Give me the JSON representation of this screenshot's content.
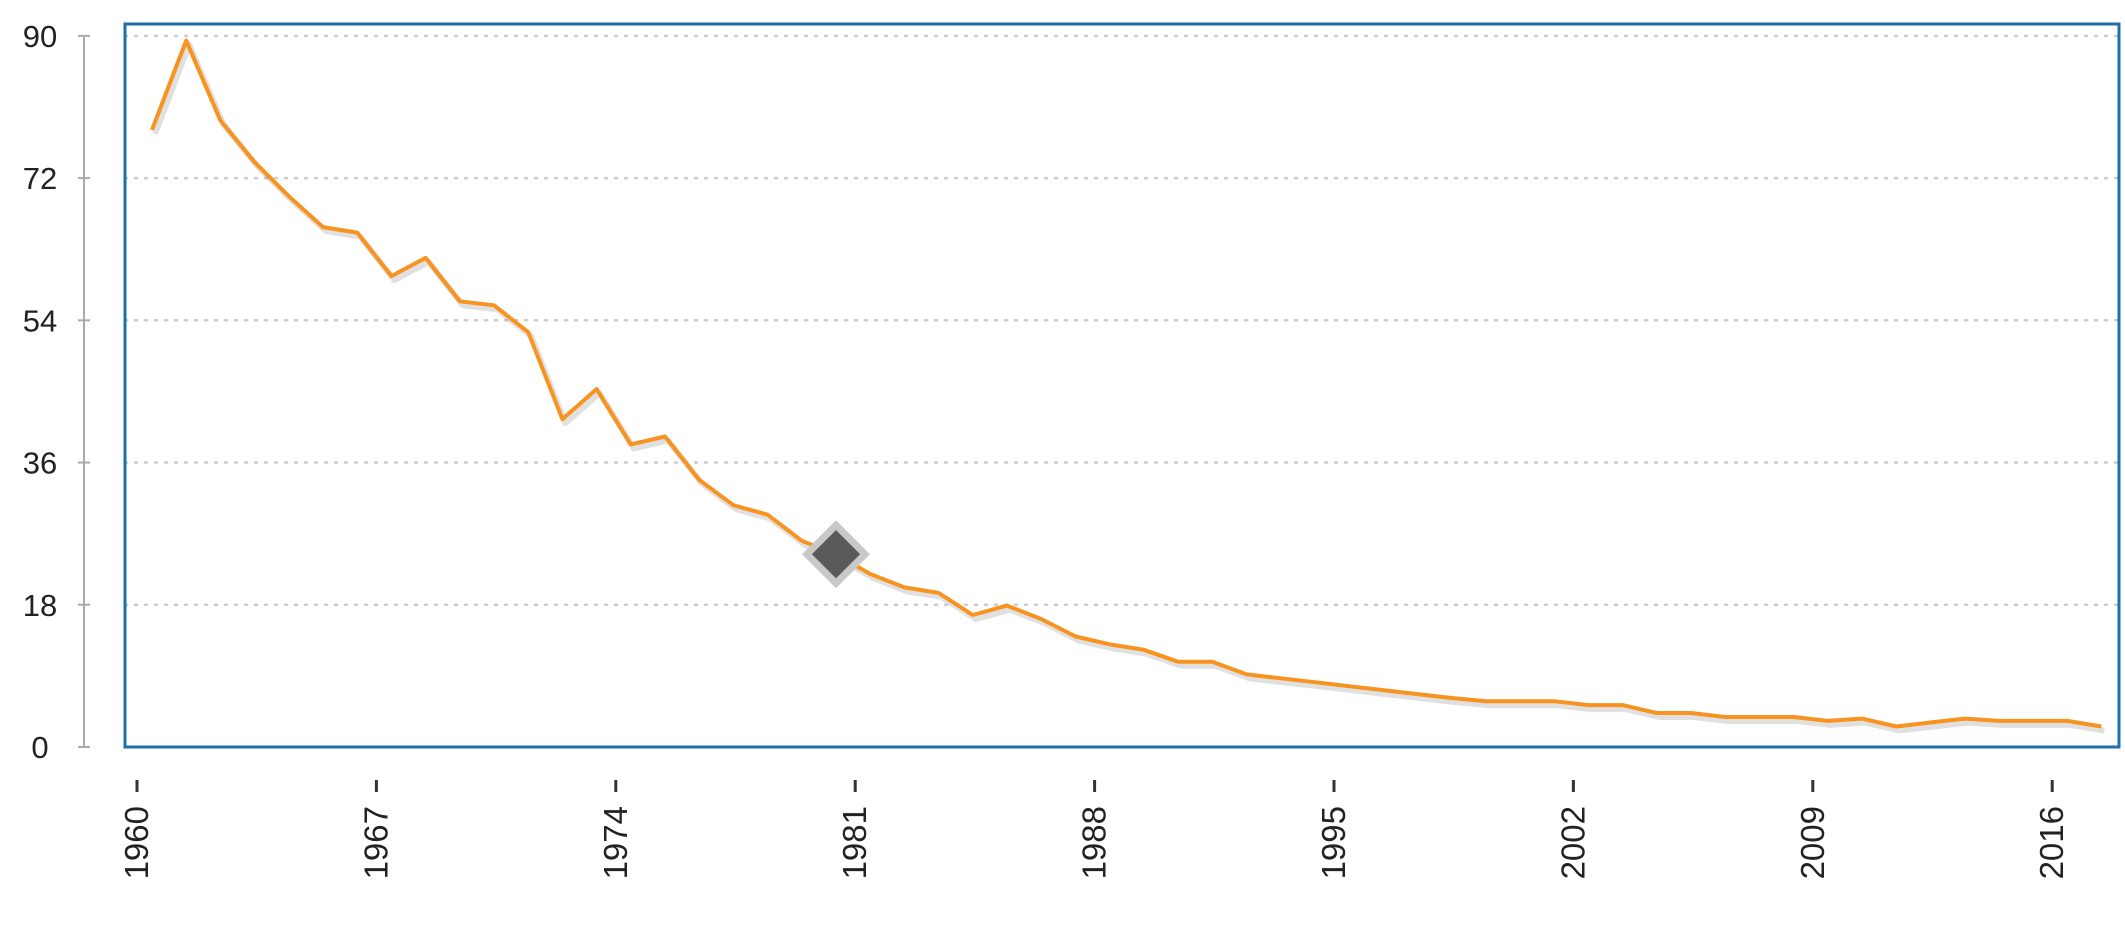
{
  "chart_data": {
    "type": "line",
    "categories": [
      "1960",
      null,
      null,
      null,
      null,
      null,
      null,
      "1967",
      null,
      null,
      null,
      null,
      null,
      null,
      "1974",
      null,
      null,
      null,
      null,
      null,
      null,
      "1981",
      null,
      null,
      null,
      null,
      null,
      null,
      "1988",
      null,
      null,
      null,
      null,
      null,
      null,
      "1995",
      null,
      null,
      null,
      null,
      null,
      null,
      "2002",
      null,
      null,
      null,
      null,
      null,
      null,
      "2009",
      null,
      null,
      null,
      null,
      null,
      null,
      "2016",
      null
    ],
    "series": [
      {
        "color": "#f7931e",
        "values": [
          78.1,
          89.4,
          79.3,
          74,
          69.7,
          65.8,
          65.1,
          59.6,
          61.9,
          56.4,
          55.9,
          52.5,
          41.5,
          45.3,
          38.3,
          39.3,
          33.8,
          30.6,
          29.4,
          26.1,
          24.4,
          21.9,
          20.2,
          19.5,
          16.7,
          17.9,
          16.2,
          14,
          13,
          12.3,
          10.8,
          10.8,
          9.2,
          8.7,
          8.2,
          7.7,
          7.2,
          6.7,
          6.2,
          5.8,
          5.8,
          5.8,
          5.3,
          5.3,
          4.3,
          4.3,
          3.8,
          3.8,
          3.8,
          3.3,
          3.6,
          2.6,
          3.1,
          3.6,
          3.3,
          3.3,
          3.3,
          2.6
        ]
      }
    ],
    "highlight_index": 20,
    "ylim": [
      0,
      91.5
    ],
    "yticks": [
      0,
      18,
      36,
      54,
      72,
      90
    ],
    "grid": true
  }
}
